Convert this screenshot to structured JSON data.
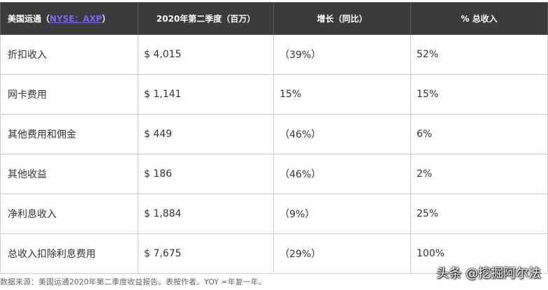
{
  "table": {
    "header": {
      "col1_prefix": "美国运通（",
      "col1_ticker": "NYSE：AXP",
      "col1_suffix": "）",
      "col2": "2020年第二季度（百万）",
      "col3": "增长（同比）",
      "col4": "% 总收入"
    },
    "rows": [
      {
        "label": "折扣收入",
        "amount": "$ 4,015",
        "growth": "（39%）",
        "pct": "52%"
      },
      {
        "label": "网卡费用",
        "amount": "$ 1,141",
        "growth": "15%",
        "pct": "15%"
      },
      {
        "label": "其他费用和佣金",
        "amount": "$ 449",
        "growth": "（46%）",
        "pct": "6%"
      },
      {
        "label": "其他收益",
        "amount": "$ 186",
        "growth": "（46%）",
        "pct": "2%"
      },
      {
        "label": "净利息收入",
        "amount": "$ 1,884",
        "growth": "（9%）",
        "pct": "25%"
      },
      {
        "label": "总收入扣除利息费用",
        "amount": "$ 7,675",
        "growth": "（29%）",
        "pct": "100%"
      }
    ]
  },
  "footer": {
    "source_note": "数据来源：美国运通2020年第二季度收益报告。表按作者。YOY =年复一年。"
  },
  "watermark": {
    "text": "头条 @挖掘阿尔法"
  }
}
